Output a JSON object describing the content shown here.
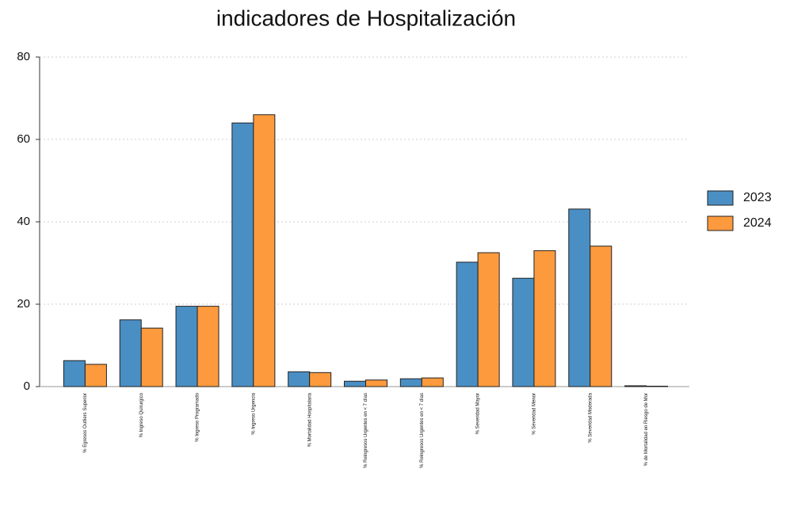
{
  "chart_data": {
    "type": "bar",
    "title": "indicadores de Hospitalización",
    "categories": [
      "% Egresos Outliers Superior",
      "% Ingreso Quirurgico",
      "% Ingreso Programado",
      "% Ingreso Urgencia",
      "% Mortalidad Hospitalaria",
      "% Reingresos Urgentes en < 7 días",
      "% Reingresos Urgentes en < 7 días",
      "% Severidad Mayor",
      "% Severidad Menor",
      "% Severidad Moderada",
      "% de Mortalidad en Riesgo de Mor"
    ],
    "series": [
      {
        "name": "2023",
        "color": "#4a8fc4",
        "values": [
          6.3,
          16.2,
          19.5,
          64,
          3.6,
          1.3,
          1.9,
          30.2,
          26.3,
          43.1,
          0.2
        ]
      },
      {
        "name": "2024",
        "color": "#fd9a3e",
        "values": [
          5.4,
          14.2,
          19.5,
          66,
          3.4,
          1.6,
          2.1,
          32.5,
          33,
          34.1,
          0.1
        ]
      }
    ],
    "ylim": [
      0,
      80
    ],
    "yticks": [
      0,
      20,
      40,
      60,
      80
    ],
    "grid": true,
    "legend": "right"
  }
}
